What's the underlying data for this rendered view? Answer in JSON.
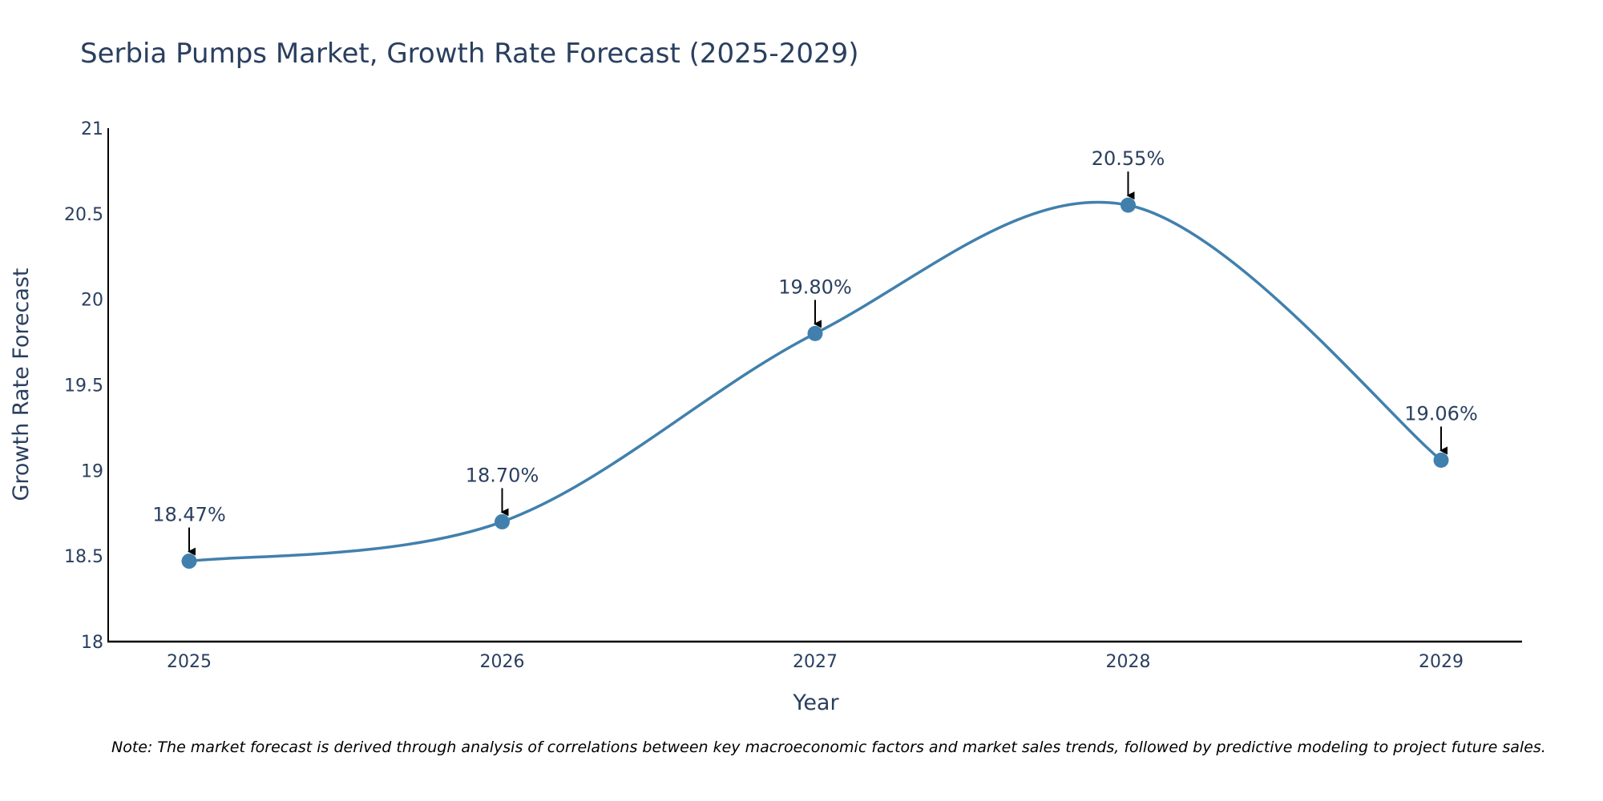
{
  "colors": {
    "line": "#4180ad",
    "marker": "#4180ad",
    "axis": "#000000",
    "text": "#2a3f5f",
    "arrow": "#000000"
  },
  "chart_data": {
    "type": "line",
    "title": "Serbia Pumps Market, Growth Rate Forecast (2025-2029)",
    "xlabel": "Year",
    "ylabel": "Growth Rate Forecast",
    "categories": [
      "2025",
      "2026",
      "2027",
      "2028",
      "2029"
    ],
    "series": [
      {
        "name": "Growth Rate Forecast",
        "values": [
          18.47,
          18.7,
          19.8,
          20.55,
          19.06
        ]
      }
    ],
    "data_labels": [
      "18.47%",
      "18.70%",
      "19.80%",
      "20.55%",
      "19.06%"
    ],
    "ylim": [
      18,
      21
    ],
    "yticks": [
      18,
      18.5,
      19,
      19.5,
      20,
      20.5,
      21
    ],
    "ytick_labels": [
      "18",
      "18.5",
      "19",
      "19.5",
      "20",
      "20.5",
      "21"
    ],
    "grid": false,
    "line_shape": "spline",
    "note": "Note: The market forecast is derived through analysis of correlations between key macroeconomic factors and market sales trends, followed by predictive modeling to project future sales."
  }
}
